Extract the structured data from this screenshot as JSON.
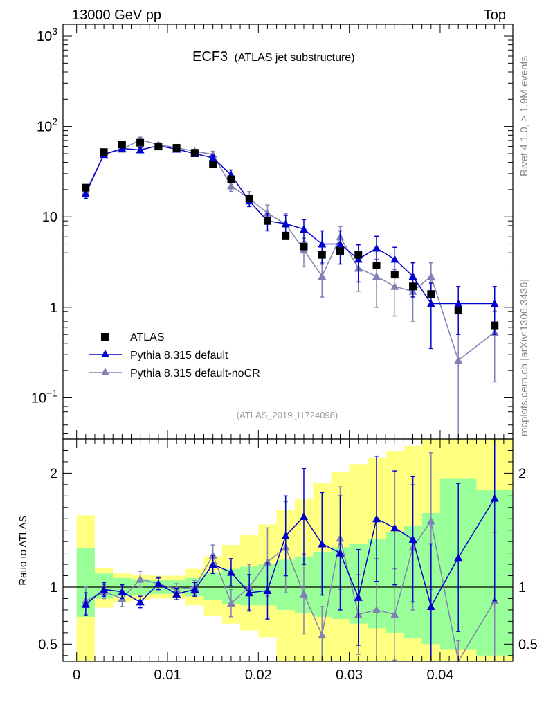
{
  "header": {
    "left_label": "13000 GeV pp",
    "right_label": "Top"
  },
  "title": {
    "main": "ECF3",
    "sub": "(ATLAS jet substructure)"
  },
  "side_text": {
    "rivet": "Rivet 4.1.0, ≥ 1.9M events",
    "mcplots": "mcplots.cern.ch [arXiv:1306.3436]"
  },
  "analysis_id": "(ATLAS_2019_I1724098)",
  "legend": {
    "items": [
      "ATLAS",
      "Pythia 8.315 default",
      "Pythia 8.315 default-noCR"
    ]
  },
  "colors": {
    "data": "#000000",
    "default": "#0000cc",
    "nocr": "#8080b3",
    "band_inner": "#99ff99",
    "band_outer": "#ffff80"
  },
  "chart_data": [
    {
      "type": "scatter",
      "scale": "log",
      "title": "ECF3",
      "xlabel": "",
      "ylabel": "",
      "xlim": [
        -0.0015,
        0.048
      ],
      "ylim": [
        0.035,
        1350
      ],
      "y_tick_labels": [
        "10^-1",
        "1",
        "10",
        "10^2",
        "10^3"
      ],
      "x": [
        0.001,
        0.003,
        0.005,
        0.007,
        0.009,
        0.011,
        0.013,
        0.015,
        0.017,
        0.019,
        0.021,
        0.023,
        0.025,
        0.027,
        0.029,
        0.031,
        0.033,
        0.035,
        0.037,
        0.039,
        0.042,
        0.046
      ],
      "series": [
        {
          "name": "ATLAS",
          "values": [
            21,
            52,
            63,
            66,
            60,
            58,
            51,
            38,
            26,
            16,
            9,
            6.2,
            4.7,
            3.8,
            4.2,
            3.8,
            2.9,
            2.3,
            1.7,
            1.4,
            0.92,
            0.63
          ]
        },
        {
          "name": "Pythia 8.315 default",
          "values": [
            18,
            49,
            57,
            55,
            61,
            56,
            50,
            45,
            29,
            15,
            9,
            8.4,
            7.3,
            5,
            5,
            3.4,
            4.5,
            3.4,
            2.2,
            1.1,
            1.1,
            1.1
          ],
          "errors": [
            2,
            3,
            3,
            3,
            3,
            3,
            3,
            3,
            4,
            2,
            2,
            2,
            2,
            2,
            2,
            1.5,
            1.6,
            1.2,
            0.9,
            0.75,
            0.6,
            0.6
          ]
        },
        {
          "name": "Pythia 8.315 default-noCR",
          "values": [
            19,
            49,
            56,
            71,
            63,
            58,
            53,
            49,
            22,
            16,
            11,
            8.3,
            4.3,
            2.2,
            6,
            2.7,
            2.2,
            1.7,
            1.5,
            2.2,
            0.26,
            0.53
          ],
          "errors": [
            2,
            3,
            4,
            5,
            3,
            3,
            3,
            4,
            3,
            3,
            2.5,
            2.5,
            1.5,
            0.9,
            1.8,
            1.2,
            1.2,
            0.9,
            0.8,
            0.9,
            0.24,
            0.38
          ]
        }
      ]
    },
    {
      "type": "scatter",
      "title": "",
      "xlabel": "",
      "ylabel": "Ratio to ATLAS",
      "xlim": [
        -0.0015,
        0.048
      ],
      "ylim": [
        0.35,
        2.3
      ],
      "y_ticks": [
        0.5,
        1,
        2
      ],
      "x_ticks": [
        0,
        0.01,
        0.02,
        0.03,
        0.04
      ],
      "x_tick_labels": [
        "0",
        "0.01",
        "0.02",
        "0.03",
        "0.04"
      ],
      "bin_edges": [
        0,
        0.002,
        0.004,
        0.006,
        0.008,
        0.01,
        0.012,
        0.014,
        0.016,
        0.018,
        0.02,
        0.022,
        0.024,
        0.026,
        0.028,
        0.03,
        0.032,
        0.034,
        0.036,
        0.038,
        0.04,
        0.044,
        0.048
      ],
      "band_inner": {
        "lo": [
          0.74,
          0.9,
          0.92,
          0.93,
          0.94,
          0.94,
          0.92,
          0.89,
          0.85,
          0.84,
          0.84,
          0.8,
          0.77,
          0.74,
          0.72,
          0.68,
          0.64,
          0.6,
          0.55,
          0.5,
          0.45,
          0.4
        ],
        "hi": [
          1.34,
          1.12,
          1.08,
          1.07,
          1.06,
          1.06,
          1.08,
          1.13,
          1.16,
          1.18,
          1.2,
          1.24,
          1.27,
          1.31,
          1.35,
          1.38,
          1.42,
          1.48,
          1.54,
          1.65,
          1.95,
          1.85
        ]
      },
      "band_outer": {
        "lo": [
          0.35,
          0.82,
          0.87,
          0.89,
          0.9,
          0.9,
          0.84,
          0.75,
          0.68,
          0.62,
          0.56,
          0.35,
          0.35,
          0.35,
          0.35,
          0.35,
          0.35,
          0.35,
          0.35,
          0.35,
          0.35,
          0.35
        ],
        "hi": [
          1.63,
          1.17,
          1.12,
          1.11,
          1.1,
          1.1,
          1.16,
          1.27,
          1.37,
          1.46,
          1.55,
          1.68,
          1.77,
          1.91,
          2.01,
          2.08,
          2.13,
          2.19,
          2.24,
          2.3,
          2.3,
          2.3
        ]
      },
      "series": [
        {
          "name": "Pythia 8.315 default",
          "values": [
            0.85,
            0.98,
            0.96,
            0.87,
            1.03,
            0.94,
            0.98,
            1.2,
            1.13,
            0.95,
            0.97,
            1.45,
            1.62,
            1.38,
            1.3,
            0.91,
            1.6,
            1.52,
            1.42,
            0.83,
            1.26,
            1.78
          ],
          "errors": [
            0.1,
            0.06,
            0.06,
            0.05,
            0.05,
            0.05,
            0.06,
            0.08,
            0.12,
            0.16,
            0.25,
            0.35,
            0.42,
            0.45,
            0.5,
            0.42,
            0.55,
            0.5,
            0.55,
            0.55,
            0.65,
            0.9
          ]
        },
        {
          "name": "Pythia 8.315 default-noCR",
          "values": [
            0.88,
            0.96,
            0.9,
            1.07,
            1.03,
            0.98,
            1.0,
            1.28,
            0.86,
            1.0,
            1.22,
            1.35,
            0.94,
            0.58,
            1.43,
            0.76,
            0.8,
            0.76,
            1.35,
            1.58,
            0.28,
            0.88
          ],
          "errors": [
            0.12,
            0.06,
            0.07,
            0.07,
            0.06,
            0.05,
            0.06,
            0.09,
            0.12,
            0.2,
            0.3,
            0.4,
            0.35,
            0.25,
            0.45,
            0.35,
            0.45,
            0.4,
            0.55,
            0.6,
            0.25,
            0.6
          ]
        }
      ]
    }
  ]
}
